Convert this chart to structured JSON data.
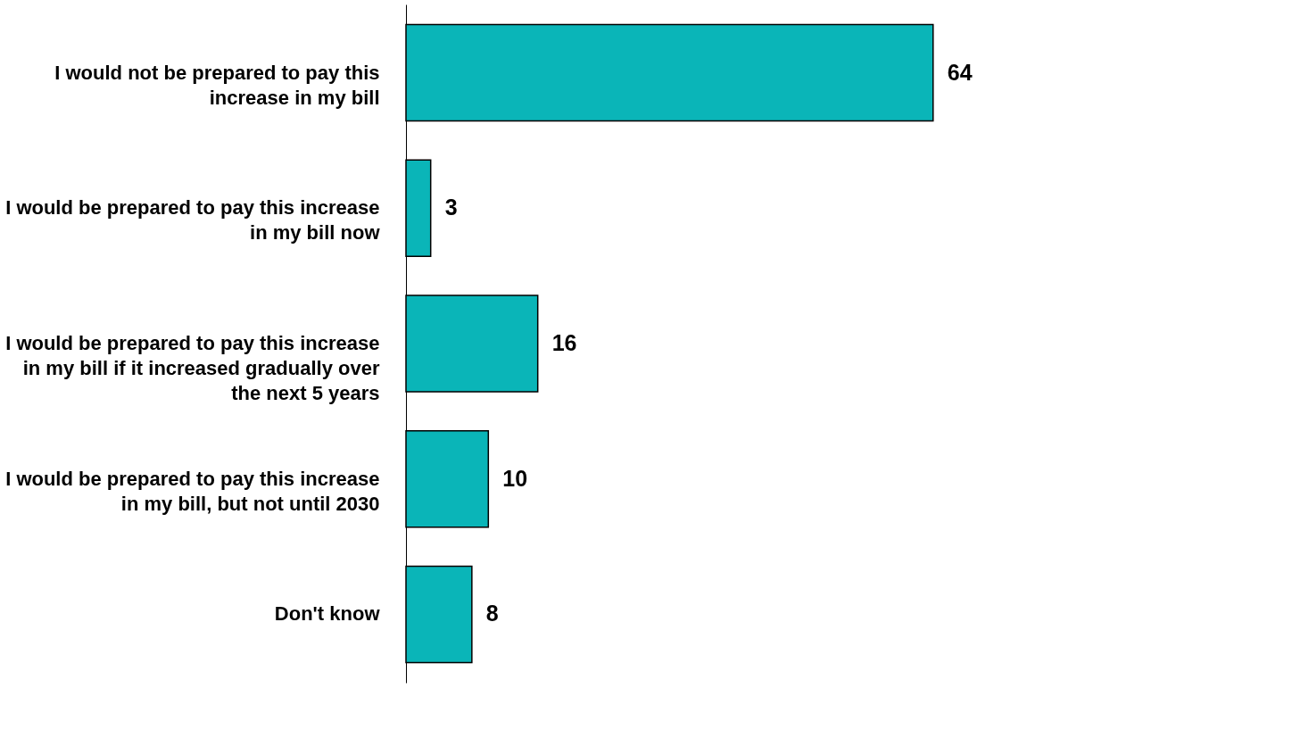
{
  "chart_data": {
    "type": "bar",
    "orientation": "horizontal",
    "categories": [
      "I would not be prepared to pay this increase in my bill",
      "I would be prepared to pay this increase in my bill now",
      "I would be prepared to pay this increase in my bill if it increased gradually over the next 5 years",
      "I would be prepared to pay this increase in my bill, but not until 2030",
      "Don't know"
    ],
    "values": [
      64,
      3,
      16,
      10,
      8
    ],
    "color": "#0ab5b8",
    "data_labels": true,
    "grid": false
  }
}
